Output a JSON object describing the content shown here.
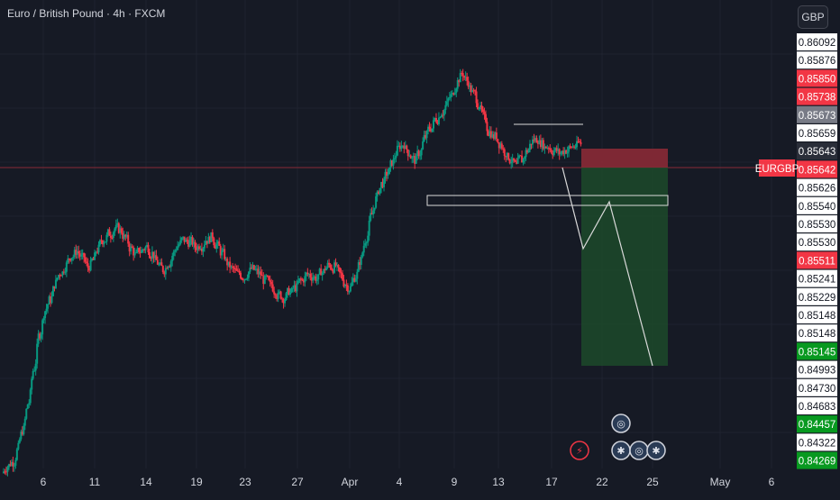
{
  "header": {
    "symbol_title": "Euro / British Pound · 4h · FXCM"
  },
  "currency_button": "GBP",
  "symbol_tag": "EURGBP",
  "colors": {
    "bg": "#161a25",
    "grid": "#1f2330",
    "up": "#089981",
    "down": "#f23645",
    "stop_zone": "#8a2a36",
    "target_zone": "#1c4a2a",
    "text": "#d1d4dc"
  },
  "price_labels": [
    {
      "text": "0.86092",
      "style": "white"
    },
    {
      "text": "0.85876",
      "style": "white"
    },
    {
      "text": "0.85850",
      "style": "red"
    },
    {
      "text": "0.85738",
      "style": "red"
    },
    {
      "text": "0.85673",
      "style": "gray"
    },
    {
      "text": "0.85659",
      "style": "white"
    },
    {
      "text": "0.85643",
      "style": "dark"
    },
    {
      "text": "0.85642",
      "style": "red"
    },
    {
      "text": "0.85626",
      "style": "white"
    },
    {
      "text": "0.85540",
      "style": "white"
    },
    {
      "text": "0.85530",
      "style": "white"
    },
    {
      "text": "0.85530",
      "style": "white"
    },
    {
      "text": "0.85511",
      "style": "red"
    },
    {
      "text": "0.85241",
      "style": "white"
    },
    {
      "text": "0.85229",
      "style": "white"
    },
    {
      "text": "0.85148",
      "style": "white"
    },
    {
      "text": "0.85148",
      "style": "white"
    },
    {
      "text": "0.85145",
      "style": "green"
    },
    {
      "text": "0.84993",
      "style": "white"
    },
    {
      "text": "0.84730",
      "style": "white"
    },
    {
      "text": "0.84683",
      "style": "white"
    },
    {
      "text": "0.84457",
      "style": "green"
    },
    {
      "text": "0.84322",
      "style": "white"
    },
    {
      "text": "0.84269",
      "style": "green"
    }
  ],
  "x_axis_ticks": [
    "6",
    "11",
    "14",
    "19",
    "23",
    "27",
    "Apr",
    "4",
    "9",
    "13",
    "17",
    "22",
    "25",
    "May",
    "6"
  ],
  "chart_data": {
    "type": "candlestick",
    "title": "Euro / British Pound · 4h · FXCM",
    "symbol": "EURGBP",
    "timeframe": "4h",
    "current_price": 0.85642,
    "short_position": {
      "entry": 0.85642,
      "stop_loss": 0.85738,
      "take_profit": 0.85145
    },
    "support_zone": [
      0.8553,
      0.8554
    ],
    "resistance_line": 0.85673,
    "close_path": [
      0.8422,
      0.8424,
      0.843,
      0.8438,
      0.845,
      0.8465,
      0.848,
      0.849,
      0.8495,
      0.8502,
      0.8507,
      0.851,
      0.8514,
      0.8516,
      0.8513,
      0.8509,
      0.8512,
      0.8517,
      0.8521,
      0.8524,
      0.8526,
      0.8525,
      0.8522,
      0.8517,
      0.8514,
      0.8516,
      0.8518,
      0.8515,
      0.8511,
      0.8508,
      0.8511,
      0.8515,
      0.8519,
      0.8521,
      0.852,
      0.8518,
      0.8519,
      0.8521,
      0.8522,
      0.8519,
      0.8515,
      0.8511,
      0.8508,
      0.8506,
      0.8505,
      0.8507,
      0.8508,
      0.8506,
      0.8503,
      0.8501,
      0.8499,
      0.8497,
      0.8496,
      0.8498,
      0.85,
      0.8503,
      0.8506,
      0.8505,
      0.8504,
      0.8507,
      0.851,
      0.8509,
      0.8506,
      0.8502,
      0.85,
      0.8505,
      0.8512,
      0.8522,
      0.8532,
      0.854,
      0.8546,
      0.855,
      0.8555,
      0.8561,
      0.8563,
      0.8559,
      0.8556,
      0.8559,
      0.8566,
      0.857,
      0.8574,
      0.8577,
      0.858,
      0.8584,
      0.859,
      0.8594,
      0.859,
      0.8585,
      0.858,
      0.8574,
      0.8568,
      0.8566,
      0.8563,
      0.8559,
      0.8556,
      0.8553,
      0.8556,
      0.856,
      0.8564,
      0.8565,
      0.8563,
      0.8562,
      0.856,
      0.8559,
      0.856,
      0.8561,
      0.8562,
      0.8563
    ],
    "projection": [
      0.85642,
      0.8553,
      0.8557,
      0.8515
    ],
    "x_ticks": [
      "6",
      "11",
      "14",
      "19",
      "23",
      "27",
      "Apr",
      "4",
      "9",
      "13",
      "17",
      "22",
      "25",
      "May",
      "6"
    ],
    "y_range": [
      0.8423,
      0.8614
    ]
  },
  "events": [
    {
      "icon": "lightning-icon",
      "glyph": "⚡"
    },
    {
      "icon": "globe-icon",
      "glyph": "◎"
    },
    {
      "icon": "uk-flag-icon",
      "glyph": "✱"
    },
    {
      "icon": "globe-icon",
      "glyph": "◎"
    },
    {
      "icon": "uk-flag-icon",
      "glyph": "✱"
    }
  ]
}
